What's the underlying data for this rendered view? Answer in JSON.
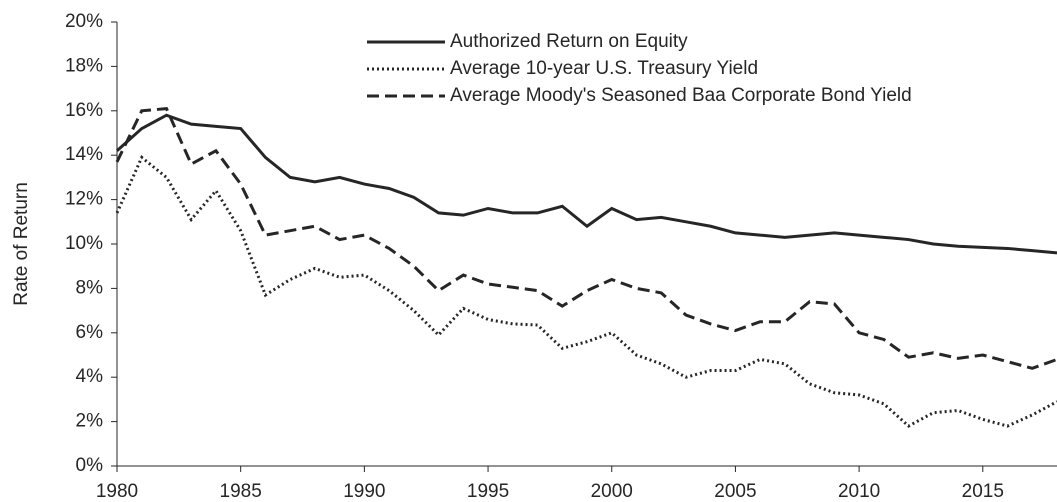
{
  "chart_data": {
    "type": "line",
    "y_label": "Rate of Return",
    "x": [
      1980,
      1981,
      1982,
      1983,
      1984,
      1985,
      1986,
      1987,
      1988,
      1989,
      1990,
      1991,
      1992,
      1993,
      1994,
      1995,
      1996,
      1997,
      1998,
      1999,
      2000,
      2001,
      2002,
      2003,
      2004,
      2005,
      2006,
      2007,
      2008,
      2009,
      2010,
      2011,
      2012,
      2013,
      2014,
      2015,
      2016,
      2017,
      2018
    ],
    "series": [
      {
        "name": "Authorized Return on Equity",
        "color": "#262626",
        "dash": "solid",
        "values": [
          14.2,
          15.2,
          15.8,
          15.4,
          15.3,
          15.2,
          13.9,
          13.0,
          12.8,
          13.0,
          12.7,
          12.5,
          12.1,
          11.4,
          11.3,
          11.6,
          11.4,
          11.4,
          11.7,
          10.8,
          11.6,
          11.1,
          11.2,
          11.0,
          10.8,
          10.5,
          10.4,
          10.3,
          10.4,
          10.5,
          10.4,
          10.3,
          10.2,
          10.0,
          9.9,
          9.85,
          9.8,
          9.7,
          9.6
        ]
      },
      {
        "name": "Average 10-year U.S. Treasury Yield",
        "color": "#262626",
        "dash": "dotted",
        "values": [
          11.4,
          13.9,
          13.0,
          11.1,
          12.4,
          10.6,
          7.7,
          8.4,
          8.9,
          8.5,
          8.6,
          7.9,
          7.0,
          5.9,
          7.1,
          6.6,
          6.4,
          6.35,
          5.3,
          5.6,
          6.0,
          5.0,
          4.6,
          4.0,
          4.3,
          4.3,
          4.8,
          4.6,
          3.7,
          3.3,
          3.2,
          2.8,
          1.8,
          2.4,
          2.5,
          2.1,
          1.8,
          2.3,
          2.9
        ]
      },
      {
        "name": "Average Moody's Seasoned Baa Corporate Bond Yield",
        "color": "#262626",
        "dash": "dashed",
        "values": [
          13.7,
          16.0,
          16.1,
          13.6,
          14.2,
          12.7,
          10.4,
          10.6,
          10.8,
          10.2,
          10.4,
          9.8,
          9.0,
          7.9,
          8.6,
          8.2,
          8.05,
          7.9,
          7.2,
          7.9,
          8.4,
          8.0,
          7.8,
          6.8,
          6.4,
          6.1,
          6.5,
          6.5,
          7.4,
          7.3,
          6.0,
          5.7,
          4.9,
          5.1,
          4.85,
          5.0,
          4.7,
          4.4,
          4.8
        ]
      }
    ],
    "xlim": [
      1980,
      2018
    ],
    "xticks": [
      1980,
      1985,
      1990,
      1995,
      2000,
      2005,
      2010,
      2015
    ],
    "ylim": [
      0,
      20
    ],
    "yticks": [
      {
        "value": 0,
        "label": "0%"
      },
      {
        "value": 2,
        "label": "2%"
      },
      {
        "value": 4,
        "label": "4%"
      },
      {
        "value": 6,
        "label": "6%"
      },
      {
        "value": 8,
        "label": "8%"
      },
      {
        "value": 10,
        "label": "10%"
      },
      {
        "value": 12,
        "label": "12%"
      },
      {
        "value": 14,
        "label": "14%"
      },
      {
        "value": 16,
        "label": "16%"
      },
      {
        "value": 18,
        "label": "18%"
      },
      {
        "value": 20,
        "label": "20%"
      }
    ],
    "grid": false
  }
}
